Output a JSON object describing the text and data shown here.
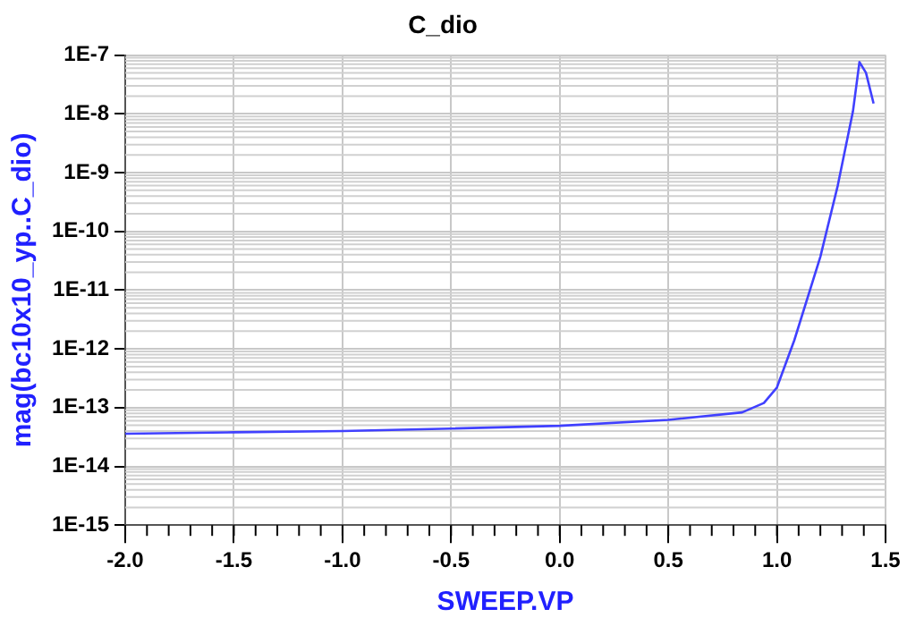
{
  "chart_data": {
    "type": "line",
    "title": "C_dio",
    "xlabel": "SWEEP.VP",
    "ylabel": "mag(bc10x10_yp..C_dio)",
    "log": "y",
    "grid": true,
    "legend": false,
    "marker": "none",
    "line_style": "solid",
    "xlim": [
      -2.0,
      1.5
    ],
    "xticks": [
      {
        "value": -2,
        "label": "-2.0"
      },
      {
        "value": -1.5,
        "label": "-1.5"
      },
      {
        "value": -1,
        "label": "-1.0"
      },
      {
        "value": -0.5,
        "label": "-0.5"
      },
      {
        "value": 0,
        "label": "0.0"
      },
      {
        "value": 0.5,
        "label": "0.5"
      },
      {
        "value": 1,
        "label": "1.0"
      },
      {
        "value": 1.5,
        "label": "1.5"
      }
    ],
    "ylim": [
      1e-15,
      1e-07
    ],
    "yticks": [
      {
        "value": 1e-15,
        "label": "1E-15"
      },
      {
        "value": 1e-14,
        "label": "1E-14"
      },
      {
        "value": 1e-13,
        "label": "1E-13"
      },
      {
        "value": 1e-12,
        "label": "1E-12"
      },
      {
        "value": 1e-11,
        "label": "1E-11"
      },
      {
        "value": 1e-10,
        "label": "1E-10"
      },
      {
        "value": 1e-09,
        "label": "1E-9"
      },
      {
        "value": 1e-08,
        "label": "1E-8"
      },
      {
        "value": 1e-07,
        "label": "1E-7"
      }
    ],
    "series": [
      {
        "color": "#4040ff",
        "x": [
          -2.0,
          -1.5,
          -1.0,
          -0.5,
          0.0,
          0.5,
          0.84,
          0.94,
          1.0,
          1.08,
          1.2,
          1.28,
          1.35,
          1.38,
          1.41,
          1.445
        ],
        "values": [
          3.6e-14,
          3.8e-14,
          4e-14,
          4.4e-14,
          4.9e-14,
          6.2e-14,
          8.3e-14,
          1.2e-13,
          2.2e-13,
          1.4e-12,
          3.7e-11,
          6e-10,
          1.1e-08,
          7.6e-08,
          5e-08,
          1.5e-08
        ]
      }
    ]
  }
}
